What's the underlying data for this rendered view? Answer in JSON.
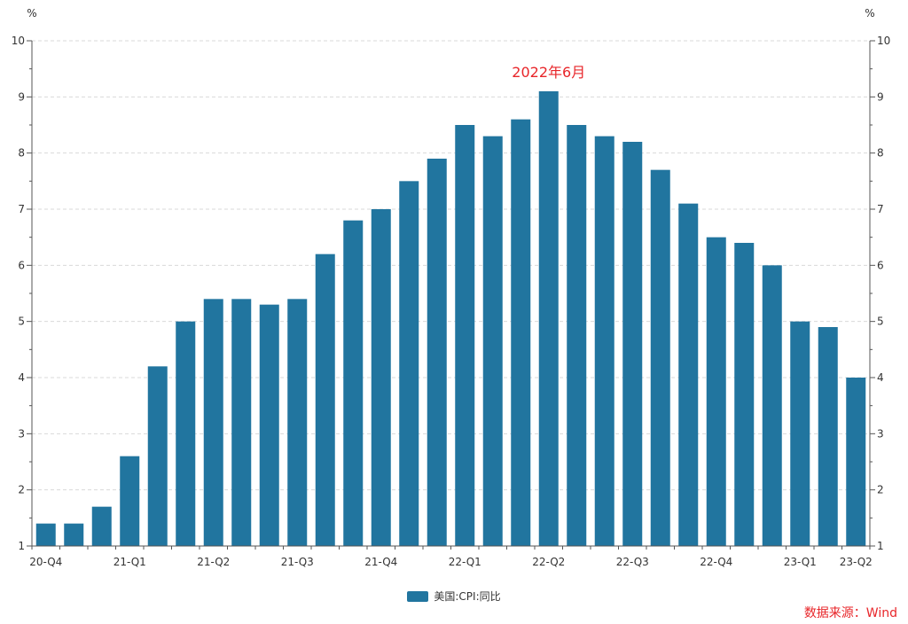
{
  "chart_data": {
    "type": "bar",
    "annotation": "2022年6月",
    "annotation_index": 18,
    "y_unit_left": "%",
    "y_unit_right": "%",
    "ylim": [
      1,
      10
    ],
    "yticks": [
      1,
      2,
      3,
      4,
      5,
      6,
      7,
      8,
      9,
      10
    ],
    "grid": true,
    "legend_position": "bottom-center",
    "x_tick_labels": [
      {
        "label": "20-Q4",
        "index": 0
      },
      {
        "label": "21-Q1",
        "index": 3
      },
      {
        "label": "21-Q2",
        "index": 6
      },
      {
        "label": "21-Q3",
        "index": 9
      },
      {
        "label": "21-Q4",
        "index": 12
      },
      {
        "label": "22-Q1",
        "index": 15
      },
      {
        "label": "22-Q2",
        "index": 18
      },
      {
        "label": "22-Q3",
        "index": 21
      },
      {
        "label": "22-Q4",
        "index": 24
      },
      {
        "label": "23-Q1",
        "index": 27
      },
      {
        "label": "23-Q2",
        "index": 29
      }
    ],
    "series": [
      {
        "name": "美国:CPI:同比",
        "color": "#21759f",
        "values": [
          1.4,
          1.4,
          1.7,
          2.6,
          4.2,
          5.0,
          5.4,
          5.4,
          5.3,
          5.4,
          6.2,
          6.8,
          7.0,
          7.5,
          7.9,
          8.5,
          8.3,
          8.6,
          9.1,
          8.5,
          8.3,
          8.2,
          7.7,
          7.1,
          6.5,
          6.4,
          6.0,
          5.0,
          4.9,
          4.0
        ]
      }
    ]
  },
  "source_label": "数据来源：Wind"
}
